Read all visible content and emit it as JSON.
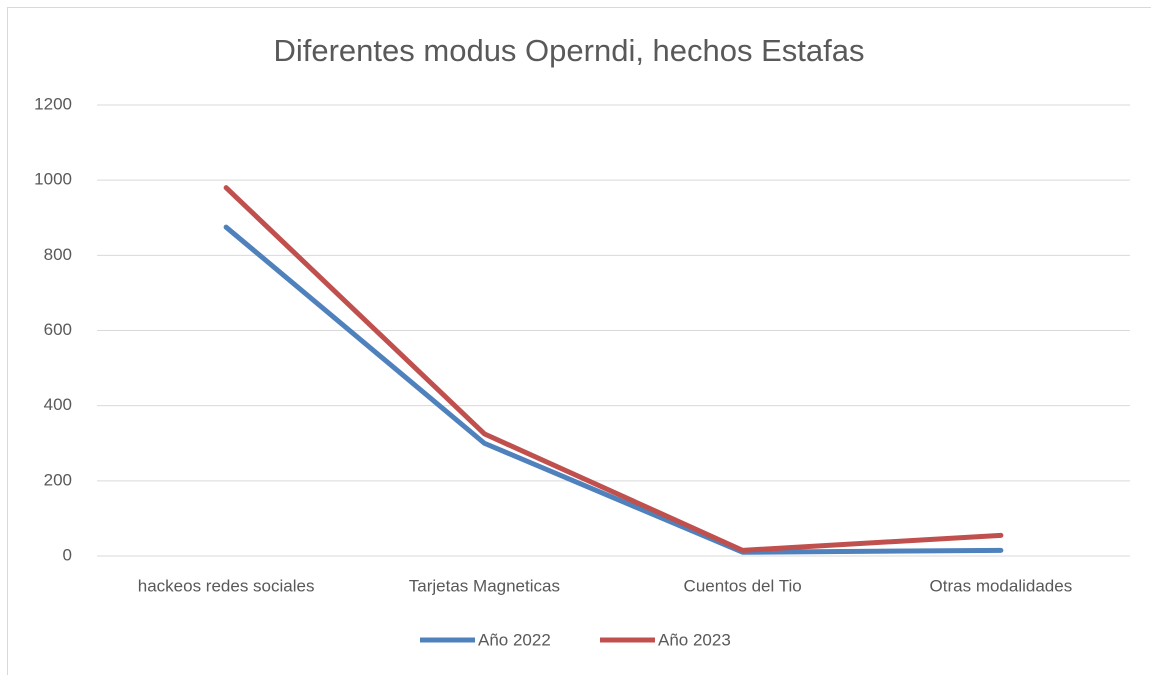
{
  "chart_data": {
    "type": "line",
    "title": "Diferentes modus Operndi, hechos Estafas",
    "categories": [
      "hackeos redes sociales",
      "Tarjetas Magneticas",
      "Cuentos del Tio",
      "Otras modalidades"
    ],
    "series": [
      {
        "name": "Año 2022",
        "color": "#4f81bd",
        "values": [
          875,
          300,
          10,
          15
        ]
      },
      {
        "name": "Año 2023",
        "color": "#c0504d",
        "values": [
          980,
          325,
          15,
          55
        ]
      }
    ],
    "ylim": [
      0,
      1200
    ],
    "yticks": [
      0,
      200,
      400,
      600,
      800,
      1000,
      1200
    ],
    "grid": true,
    "legend": "bottom"
  }
}
